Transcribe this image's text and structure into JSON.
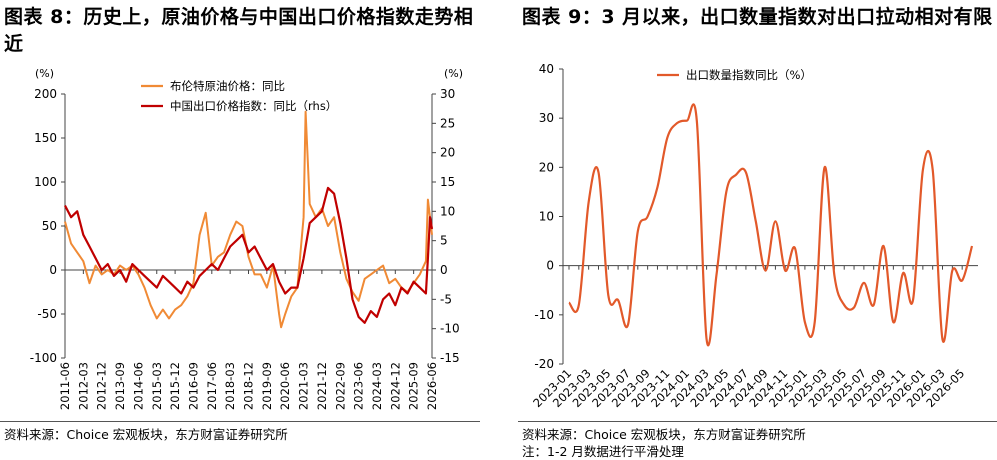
{
  "left": {
    "title": "图表 8：历史上，原油价格与中国出口价格指数走势相近",
    "source": "资料来源：Choice 宏观板块，东方财富证券研究所"
  },
  "right": {
    "title": "图表 9：3 月以来，出口数量指数对出口拉动相对有限",
    "source": "资料来源：Choice 宏观板块，东方财富证券研究所",
    "note": "注：1-2 月数据进行平滑处理"
  },
  "chart_data": [
    {
      "type": "line",
      "title": "图表 8：历史上，原油价格与中国出口价格指数走势相近",
      "y_unit_left": "(%)",
      "y_unit_right": "(%)",
      "ylim": [
        -100,
        200
      ],
      "ylim_right": [
        -15,
        30
      ],
      "yticks": [
        -100,
        -50,
        0,
        50,
        100,
        150,
        200
      ],
      "yticks_right": [
        -15,
        -10,
        -5,
        0,
        5,
        10,
        15,
        20,
        25,
        30
      ],
      "xticks": [
        "2011-06",
        "2012-03",
        "2012-12",
        "2013-09",
        "2014-06",
        "2015-03",
        "2015-12",
        "2016-09",
        "2017-06",
        "2018-03",
        "2018-12",
        "2019-09",
        "2020-06",
        "2021-03",
        "2021-12",
        "2022-09",
        "2023-06",
        "2024-03",
        "2024-12",
        "2025-09",
        "2026-06"
      ],
      "legend_position": "top-center",
      "grid": false,
      "colors": {
        "brent": "#F08A35",
        "export_price": "#C00000"
      },
      "series": [
        {
          "name": "布伦特原油价格：同比",
          "axis": "left",
          "x": [
            "2011-06",
            "2011-09",
            "2011-12",
            "2012-03",
            "2012-06",
            "2012-09",
            "2012-12",
            "2013-03",
            "2013-06",
            "2013-09",
            "2013-12",
            "2014-03",
            "2014-06",
            "2014-09",
            "2014-12",
            "2015-03",
            "2015-06",
            "2015-09",
            "2015-12",
            "2016-03",
            "2016-06",
            "2016-09",
            "2016-12",
            "2017-03",
            "2017-06",
            "2017-09",
            "2017-12",
            "2018-03",
            "2018-06",
            "2018-09",
            "2018-12",
            "2019-03",
            "2019-06",
            "2019-09",
            "2019-12",
            "2020-03",
            "2020-04",
            "2020-06",
            "2020-09",
            "2020-12",
            "2021-03",
            "2021-04",
            "2021-06",
            "2021-09",
            "2021-12",
            "2022-03",
            "2022-06",
            "2022-09",
            "2022-12",
            "2023-03",
            "2023-06",
            "2023-09",
            "2023-12",
            "2024-03",
            "2024-06",
            "2024-09",
            "2024-12",
            "2025-03",
            "2025-06",
            "2025-09",
            "2025-12",
            "2026-03",
            "2026-04",
            "2026-05",
            "2026-06"
          ],
          "values": [
            55,
            30,
            20,
            10,
            -15,
            5,
            -5,
            0,
            -5,
            5,
            0,
            5,
            -5,
            -20,
            -40,
            -55,
            -45,
            -55,
            -45,
            -40,
            -30,
            -15,
            40,
            65,
            5,
            15,
            20,
            40,
            55,
            50,
            15,
            -5,
            -5,
            -20,
            5,
            -50,
            -65,
            -50,
            -30,
            -20,
            60,
            180,
            75,
            60,
            70,
            50,
            60,
            20,
            -10,
            -25,
            -35,
            -10,
            -5,
            0,
            5,
            -15,
            -10,
            -20,
            -25,
            -15,
            -5,
            10,
            80,
            60,
            40
          ]
        },
        {
          "name": "中国出口价格指数：同比（rhs）",
          "axis": "right",
          "x": [
            "2011-06",
            "2011-09",
            "2011-12",
            "2012-03",
            "2012-06",
            "2012-09",
            "2012-12",
            "2013-03",
            "2013-06",
            "2013-09",
            "2013-12",
            "2014-03",
            "2014-06",
            "2014-09",
            "2014-12",
            "2015-03",
            "2015-06",
            "2015-09",
            "2015-12",
            "2016-03",
            "2016-06",
            "2016-09",
            "2016-12",
            "2017-03",
            "2017-06",
            "2017-09",
            "2017-12",
            "2018-03",
            "2018-06",
            "2018-09",
            "2018-12",
            "2019-03",
            "2019-06",
            "2019-09",
            "2019-12",
            "2020-03",
            "2020-06",
            "2020-09",
            "2020-12",
            "2021-03",
            "2021-06",
            "2021-09",
            "2021-12",
            "2022-03",
            "2022-06",
            "2022-09",
            "2022-12",
            "2023-03",
            "2023-06",
            "2023-09",
            "2023-12",
            "2024-03",
            "2024-06",
            "2024-09",
            "2024-12",
            "2025-03",
            "2025-06",
            "2025-09",
            "2025-12",
            "2026-03",
            "2026-04",
            "2026-05",
            "2026-06"
          ],
          "values": [
            11,
            9,
            10,
            6,
            4,
            2,
            0,
            1,
            -1,
            0,
            -2,
            1,
            0,
            -1,
            -2,
            -3,
            -1,
            -2,
            -3,
            -4,
            -2,
            -3,
            -1,
            0,
            1,
            0,
            2,
            4,
            5,
            6,
            3,
            4,
            2,
            0,
            1,
            -2,
            -4,
            -3,
            -3,
            2,
            8,
            9,
            10,
            14,
            13,
            8,
            2,
            -5,
            -8,
            -9,
            -7,
            -8,
            -5,
            -4,
            -6,
            -3,
            -4,
            -2,
            -3,
            -4,
            2,
            9,
            7
          ]
        }
      ]
    },
    {
      "type": "line",
      "title": "图表 9：3 月以来，出口数量指数对出口拉动相对有限",
      "ylim": [
        -20,
        40
      ],
      "yticks": [
        -20,
        -10,
        0,
        10,
        20,
        30,
        40
      ],
      "xticks": [
        "2023-01",
        "2023-03",
        "2023-05",
        "2023-07",
        "2023-09",
        "2023-11",
        "2024-01",
        "2024-03",
        "2024-05",
        "2024-07",
        "2024-09",
        "2024-11",
        "2025-01",
        "2025-03",
        "2025-05",
        "2025-07",
        "2025-09",
        "2025-11",
        "2026-01",
        "2026-03",
        "2026-05"
      ],
      "legend_position": "top-left",
      "grid": false,
      "colors": {
        "export_volume": "#E2592A"
      },
      "series": [
        {
          "name": "出口数量指数同比（%）",
          "x": [
            "2023-01",
            "2023-02",
            "2023-03",
            "2023-04",
            "2023-05",
            "2023-06",
            "2023-07",
            "2023-08",
            "2023-09",
            "2023-10",
            "2023-11",
            "2023-12",
            "2024-01",
            "2024-02",
            "2024-03",
            "2024-04",
            "2024-05",
            "2024-06",
            "2024-07",
            "2024-08",
            "2024-09",
            "2024-10",
            "2024-11",
            "2024-12",
            "2025-01",
            "2025-02",
            "2025-03",
            "2025-04",
            "2025-05",
            "2025-06",
            "2025-07",
            "2025-08",
            "2025-09",
            "2025-10",
            "2025-11",
            "2025-12",
            "2026-01",
            "2026-02",
            "2026-03",
            "2026-04",
            "2026-05",
            "2026-06"
          ],
          "values": [
            -7.5,
            -8,
            13,
            19,
            -6,
            -7,
            -12,
            7,
            10,
            16,
            26,
            29,
            29.5,
            29.5,
            -15,
            -2,
            15,
            18.5,
            19,
            9,
            -1,
            9,
            -1,
            3.5,
            -11.5,
            -11.5,
            20,
            -2,
            -8,
            -8.5,
            -3.5,
            -8,
            4,
            -11.5,
            -1.5,
            -7,
            19.5,
            19.5,
            -15,
            -1,
            -3,
            4
          ]
        }
      ]
    }
  ]
}
